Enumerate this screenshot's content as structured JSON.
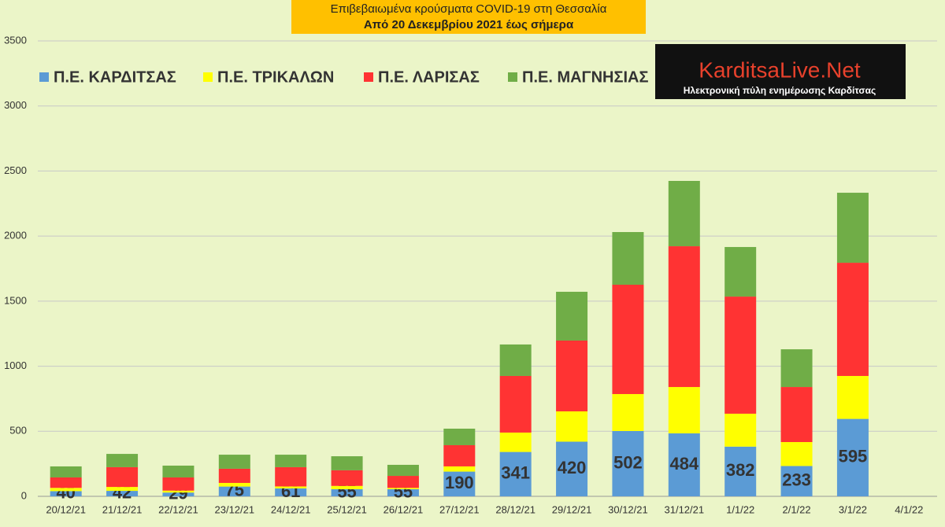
{
  "chart_data": {
    "type": "stacked_bar",
    "title": "Επιβεβαιωμένα κρούσματα COVID-19 στη Θεσσαλία",
    "subtitle": "Από 20 Δεκεμβρίου 2021 έως σήμερα",
    "annotations": [
      "KarditsaLive.Net",
      "Ηλεκτρονική πύλη ενημέρωσης Καρδίτσας"
    ],
    "categories": [
      "20/12/21",
      "21/12/21",
      "22/12/21",
      "23/12/21",
      "24/12/21",
      "25/12/21",
      "26/12/21",
      "27/12/21",
      "28/12/21",
      "29/12/21",
      "30/12/21",
      "31/12/21",
      "1/1/22",
      "2/1/22",
      "3/1/22",
      "4/1/22"
    ],
    "series": [
      {
        "name": "Π.Ε. ΚΑΡΔΙΤΣΑΣ",
        "color": "#5b9bd5",
        "values": [
          40,
          42,
          29,
          75,
          61,
          55,
          55,
          190,
          341,
          420,
          502,
          484,
          382,
          233,
          595,
          null
        ],
        "data_labels": true
      },
      {
        "name": "Π.Ε. ΤΡΙΚΑΛΩΝ",
        "color": "#ffff00",
        "values": [
          25,
          30,
          15,
          28,
          15,
          25,
          10,
          40,
          149,
          233,
          284,
          356,
          253,
          184,
          330,
          null
        ]
      },
      {
        "name": "Π.Ε. ΛΑΡΙΣΑΣ",
        "color": "#ff3333",
        "values": [
          80,
          152,
          101,
          109,
          148,
          120,
          92,
          163,
          435,
          544,
          840,
          1082,
          900,
          423,
          870,
          null
        ]
      },
      {
        "name": "Π.Ε. ΜΑΓΝΗΣΙΑΣ",
        "color": "#70ad47",
        "values": [
          85,
          102,
          91,
          108,
          96,
          108,
          85,
          127,
          242,
          375,
          405,
          502,
          381,
          290,
          538,
          null
        ]
      }
    ],
    "ylim": [
      0,
      3500
    ],
    "yticks": [
      0,
      500,
      1000,
      1500,
      2000,
      2500,
      3000,
      3500
    ],
    "grid": true
  }
}
